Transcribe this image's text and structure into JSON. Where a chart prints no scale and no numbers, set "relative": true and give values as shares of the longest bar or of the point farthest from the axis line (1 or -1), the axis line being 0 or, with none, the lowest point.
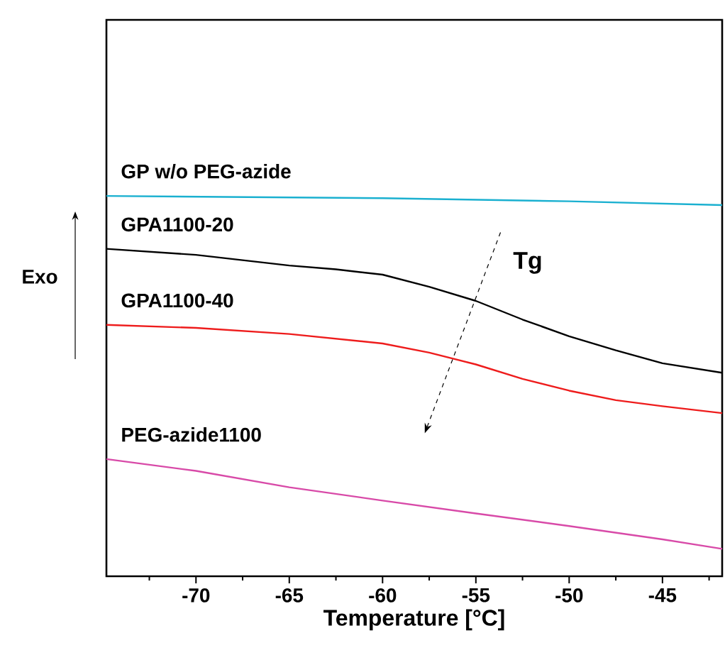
{
  "chart_data": {
    "type": "line",
    "relative": true,
    "xlabel": "Temperature [°C]",
    "ylabel": "Exo",
    "xlim": [
      -74.8,
      -41.8
    ],
    "xticks": [
      -70,
      -65,
      -60,
      -55,
      -50,
      -45
    ],
    "annotations": [
      "Tg"
    ],
    "grid": false,
    "marker": "none",
    "line_style": "solid",
    "series": [
      {
        "name": "GP w/o PEG-azide",
        "color": "#1ab0d0",
        "x": [
          -74.8,
          -60,
          -50,
          -41.8
        ],
        "values": [
          1.0,
          0.994,
          0.986,
          0.976
        ]
      },
      {
        "name": "GPA1100-20",
        "color": "#000000",
        "x": [
          -74.8,
          -70,
          -65,
          -62.5,
          -60,
          -57.5,
          -55,
          -52.5,
          -50,
          -47.5,
          -45,
          -41.8
        ],
        "values": [
          0.861,
          0.845,
          0.817,
          0.807,
          0.793,
          0.761,
          0.724,
          0.675,
          0.631,
          0.594,
          0.56,
          0.535
        ]
      },
      {
        "name": "GPA1100-40",
        "color": "#ee1c1c",
        "x": [
          -74.8,
          -70,
          -65,
          -60,
          -57.5,
          -55,
          -52.5,
          -50,
          -47.5,
          -45,
          -41.8
        ],
        "values": [
          0.661,
          0.653,
          0.637,
          0.612,
          0.588,
          0.557,
          0.519,
          0.488,
          0.463,
          0.447,
          0.429
        ]
      },
      {
        "name": "PEG-azide1100",
        "color": "#d84aa8",
        "x": [
          -74.8,
          -70,
          -65,
          -60,
          -55,
          -50,
          -45,
          -41.8
        ],
        "values": [
          0.308,
          0.277,
          0.234,
          0.199,
          0.165,
          0.132,
          0.097,
          0.072
        ]
      }
    ]
  }
}
